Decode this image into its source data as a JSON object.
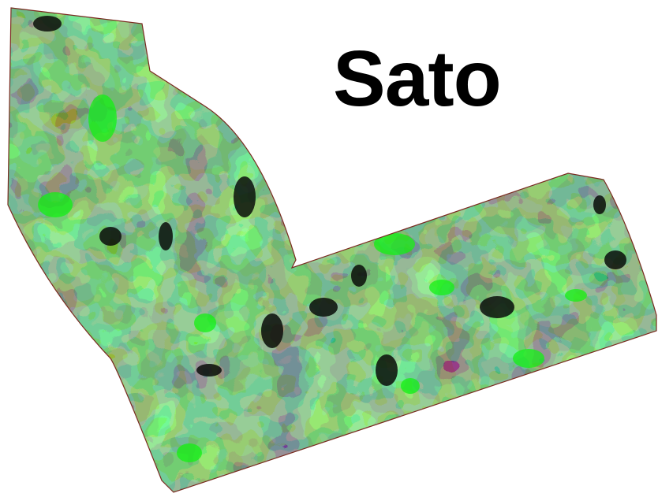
{
  "title": "Sato",
  "map": {
    "type": "zonal-vigor-map",
    "zone_colors": [
      "#0a0d0a",
      "#2c472c",
      "#4f7a4f",
      "#2c9c2c",
      "#3fce3f",
      "#14f014"
    ],
    "boundary_color": "#7a2a20",
    "background": "#ffffff"
  }
}
